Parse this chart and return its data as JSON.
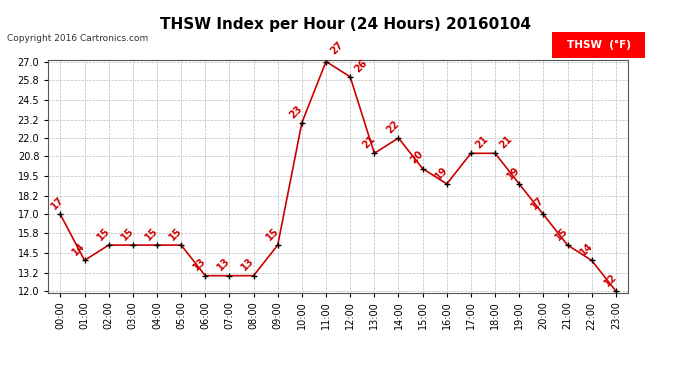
{
  "title": "THSW Index per Hour (24 Hours) 20160104",
  "copyright": "Copyright 2016 Cartronics.com",
  "legend_label": "THSW  (°F)",
  "hours": [
    0,
    1,
    2,
    3,
    4,
    5,
    6,
    7,
    8,
    9,
    10,
    11,
    12,
    13,
    14,
    15,
    16,
    17,
    18,
    19,
    20,
    21,
    22,
    23
  ],
  "values": [
    17,
    14,
    15,
    15,
    15,
    15,
    13,
    13,
    13,
    15,
    23,
    27,
    26,
    21,
    22,
    20,
    19,
    21,
    21,
    19,
    17,
    15,
    14,
    12
  ],
  "x_labels": [
    "00:00",
    "01:00",
    "02:00",
    "03:00",
    "04:00",
    "05:00",
    "06:00",
    "07:00",
    "08:00",
    "09:00",
    "10:00",
    "11:00",
    "12:00",
    "13:00",
    "14:00",
    "15:00",
    "16:00",
    "17:00",
    "18:00",
    "19:00",
    "20:00",
    "21:00",
    "22:00",
    "23:00"
  ],
  "y_min": 12.0,
  "y_max": 27.0,
  "y_ticks": [
    12.0,
    13.2,
    14.5,
    15.8,
    17.0,
    18.2,
    19.5,
    20.8,
    22.0,
    23.2,
    24.5,
    25.8,
    27.0
  ],
  "line_color": "#cc0000",
  "marker_color": "#000000",
  "label_color": "#cc0000",
  "background_color": "#ffffff",
  "grid_color": "#bbbbbb",
  "title_fontsize": 11,
  "tick_fontsize": 7,
  "annotation_fontsize": 7
}
